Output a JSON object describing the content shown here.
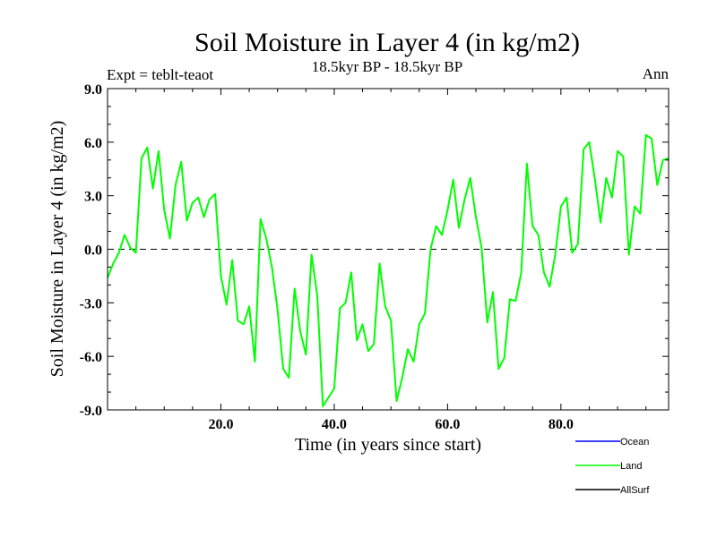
{
  "chart_data": {
    "type": "line",
    "title": "Soil Moisture in Layer 4 (in kg/m2)",
    "subtitle": "18.5kyr BP - 18.5kyr BP",
    "expt_label": "Expt = teblt-teaot",
    "season_label": "Ann",
    "xlabel": "Time (in years since start)",
    "ylabel": "Soil Moisture in Layer 4 (in kg/m2)",
    "xlim": [
      0,
      99
    ],
    "ylim": [
      -9,
      9
    ],
    "x_ticks": [
      20,
      40,
      60,
      80
    ],
    "x_tick_labels": [
      "20.0",
      "40.0",
      "60.0",
      "80.0"
    ],
    "y_ticks": [
      -9,
      -6,
      -3,
      0,
      3,
      6,
      9
    ],
    "y_tick_labels": [
      "-9.0",
      "-6.0",
      "-3.0",
      "0.0",
      "3.0",
      "6.0",
      "9.0"
    ],
    "zero_line": true,
    "x": [
      0,
      1,
      2,
      3,
      4,
      5,
      6,
      7,
      8,
      9,
      10,
      11,
      12,
      13,
      14,
      15,
      16,
      17,
      18,
      19,
      20,
      21,
      22,
      23,
      24,
      25,
      26,
      27,
      28,
      29,
      30,
      31,
      32,
      33,
      34,
      35,
      36,
      37,
      38,
      39,
      40,
      41,
      42,
      43,
      44,
      45,
      46,
      47,
      48,
      49,
      50,
      51,
      52,
      53,
      54,
      55,
      56,
      57,
      58,
      59,
      60,
      61,
      62,
      63,
      64,
      65,
      66,
      67,
      68,
      69,
      70,
      71,
      72,
      73,
      74,
      75,
      76,
      77,
      78,
      79,
      80,
      81,
      82,
      83,
      84,
      85,
      86,
      87,
      88,
      89,
      90,
      91,
      92,
      93,
      94,
      95,
      96,
      97,
      98,
      99
    ],
    "series": [
      {
        "name": "Land",
        "color": "#00ff00",
        "values": [
          -1.6,
          -0.8,
          -0.2,
          0.8,
          0.1,
          -0.2,
          5.1,
          5.7,
          3.4,
          5.5,
          2.2,
          0.6,
          3.6,
          4.9,
          1.6,
          2.6,
          2.9,
          1.8,
          2.8,
          3.1,
          -1.5,
          -3.1,
          -0.6,
          -4.0,
          -4.2,
          -3.2,
          -6.3,
          1.7,
          0.6,
          -1.0,
          -3.4,
          -6.7,
          -7.2,
          -2.2,
          -4.6,
          -5.9,
          -0.3,
          -2.6,
          -8.8,
          -8.3,
          -7.8,
          -3.3,
          -3.0,
          -1.3,
          -5.1,
          -4.2,
          -5.7,
          -5.3,
          -0.8,
          -3.2,
          -4.0,
          -8.5,
          -7.2,
          -5.6,
          -6.3,
          -4.2,
          -3.6,
          0.0,
          1.3,
          0.8,
          2.2,
          3.9,
          1.2,
          2.8,
          4.0,
          1.8,
          0.1,
          -4.1,
          -2.4,
          -6.7,
          -6.1,
          -2.8,
          -2.9,
          -1.3,
          4.8,
          1.3,
          0.8,
          -1.3,
          -2.1,
          -0.3,
          2.4,
          2.9,
          -0.2,
          0.3,
          5.6,
          6.0,
          3.9,
          1.5,
          4.0,
          2.9,
          5.5,
          5.2,
          -0.3,
          2.4,
          2.0,
          6.4,
          6.2,
          3.6,
          5.0,
          5.1
        ]
      }
    ],
    "legend": [
      {
        "name": "Ocean",
        "color": "#0000ff"
      },
      {
        "name": "Land",
        "color": "#00ff00"
      },
      {
        "name": "AllSurf",
        "color": "#000000"
      }
    ]
  }
}
